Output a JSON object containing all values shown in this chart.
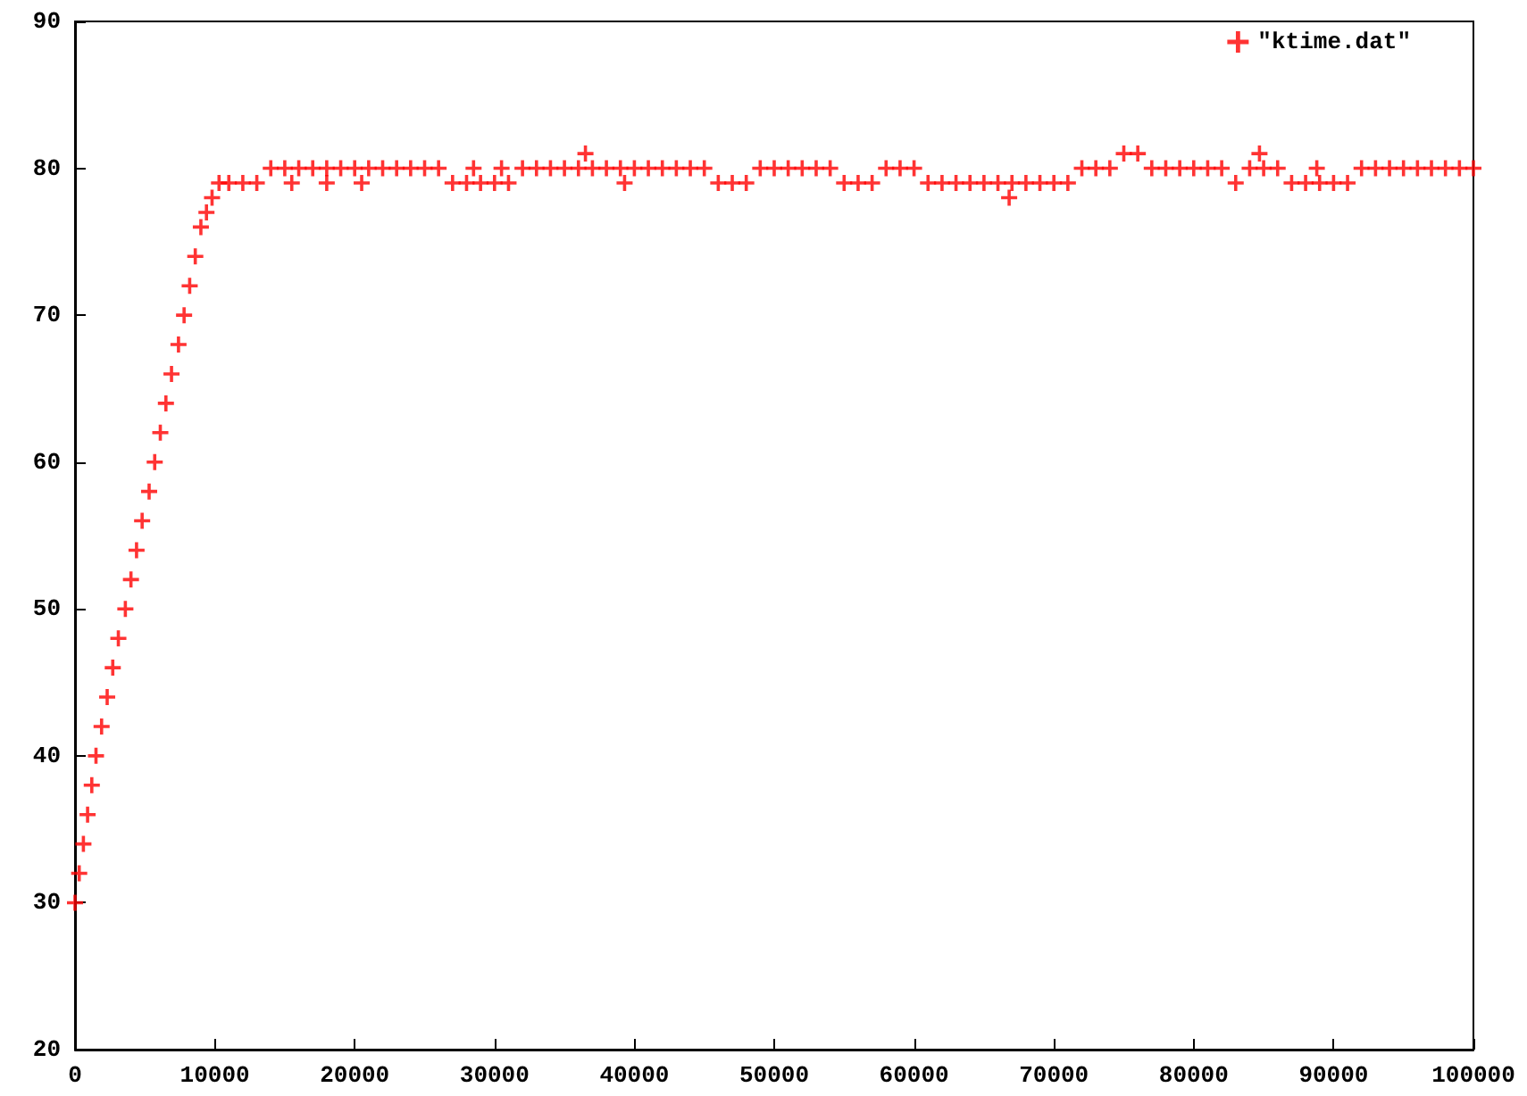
{
  "chart_data": {
    "type": "scatter",
    "xlim": [
      0,
      100000
    ],
    "ylim": [
      20,
      90
    ],
    "xticks": [
      0,
      10000,
      20000,
      30000,
      40000,
      50000,
      60000,
      70000,
      80000,
      90000,
      100000
    ],
    "yticks": [
      20,
      30,
      40,
      50,
      60,
      70,
      80,
      90
    ],
    "grid": false,
    "legend": "top right",
    "marker": "cross",
    "x": [
      0,
      300,
      600,
      900,
      1200,
      1500,
      1900,
      2300,
      2700,
      3100,
      3600,
      4000,
      4400,
      4800,
      5300,
      5700,
      6100,
      6500,
      6900,
      7400,
      7800,
      8200,
      8600,
      9000,
      9400,
      9800,
      10300,
      11000,
      12000,
      13000,
      14000,
      15000,
      15500,
      16000,
      17000,
      18000,
      18000,
      19000,
      20000,
      20500,
      21000,
      22000,
      23000,
      24000,
      25000,
      26000,
      27000,
      28000,
      28500,
      29000,
      30000,
      30500,
      31000,
      32000,
      33000,
      34000,
      35000,
      36000,
      36500,
      37000,
      38000,
      39000,
      39300,
      40000,
      41000,
      42000,
      43000,
      44000,
      45000,
      46000,
      47000,
      48000,
      49000,
      50000,
      51000,
      52000,
      53000,
      54000,
      55000,
      56000,
      57000,
      58000,
      59000,
      60000,
      61000,
      62000,
      63000,
      64000,
      65000,
      66000,
      66800,
      67000,
      68000,
      69000,
      70000,
      71000,
      72000,
      73000,
      74000,
      75000,
      76000,
      77000,
      78000,
      79000,
      80000,
      81000,
      82000,
      83000,
      84000,
      84700,
      85000,
      86000,
      87000,
      88000,
      88800,
      89000,
      90000,
      91000,
      92000,
      93000,
      94000,
      95000,
      96000,
      97000,
      98000,
      99000,
      100000
    ],
    "series": [
      {
        "name": "\"ktime.dat\"",
        "color": "#ff0000",
        "values": [
          30,
          32,
          34,
          36,
          38,
          40,
          42,
          44,
          46,
          48,
          50,
          52,
          54,
          56,
          58,
          60,
          62,
          64,
          66,
          68,
          70,
          72,
          74,
          76,
          77,
          78,
          79,
          79,
          79,
          79,
          80,
          80,
          79,
          80,
          80,
          80,
          79,
          80,
          80,
          79,
          80,
          80,
          80,
          80,
          80,
          80,
          79,
          79,
          80,
          79,
          79,
          80,
          79,
          80,
          80,
          80,
          80,
          80,
          81,
          80,
          80,
          80,
          79,
          80,
          80,
          80,
          80,
          80,
          80,
          79,
          79,
          79,
          80,
          80,
          80,
          80,
          80,
          80,
          79,
          79,
          79,
          80,
          80,
          80,
          79,
          79,
          79,
          79,
          79,
          79,
          78,
          79,
          79,
          79,
          79,
          79,
          80,
          80,
          80,
          81,
          81,
          80,
          80,
          80,
          80,
          80,
          80,
          79,
          80,
          81,
          80,
          80,
          79,
          79,
          80,
          79,
          79,
          79,
          80,
          80,
          80,
          80,
          80,
          80,
          80,
          80,
          80
        ]
      }
    ]
  }
}
